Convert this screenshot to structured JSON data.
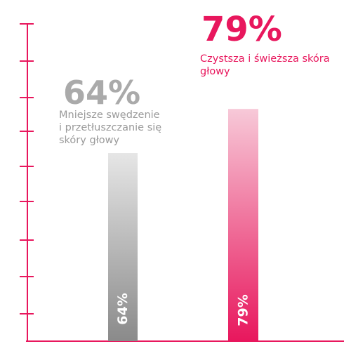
{
  "chart_data": {
    "type": "bar",
    "categories": [
      "Mniejsze swędzenie i przetłuszczanie się skóry głowy",
      "Czystsza i świeższa skóra głowy"
    ],
    "values": [
      64,
      79
    ],
    "ylim": [
      0,
      100
    ],
    "bars": [
      {
        "value_label": "64%",
        "headline": "64%",
        "description_lines": [
          "Mniejsze swędzenie",
          "i przetłuszczanie się",
          "skóry głowy"
        ]
      },
      {
        "value_label": "79%",
        "headline": "79%",
        "description_lines": [
          "Czystsza i świeższa skóra",
          "głowy"
        ]
      }
    ]
  },
  "colors": {
    "accent": "#e8175d",
    "grey_text": "#aaaaaa",
    "grey_bar_top": "#e6e6e6",
    "grey_bar_bottom": "#8a8a8a",
    "pink_bar_top": "#f7c9d8",
    "pink_bar_bottom": "#e8175d"
  }
}
